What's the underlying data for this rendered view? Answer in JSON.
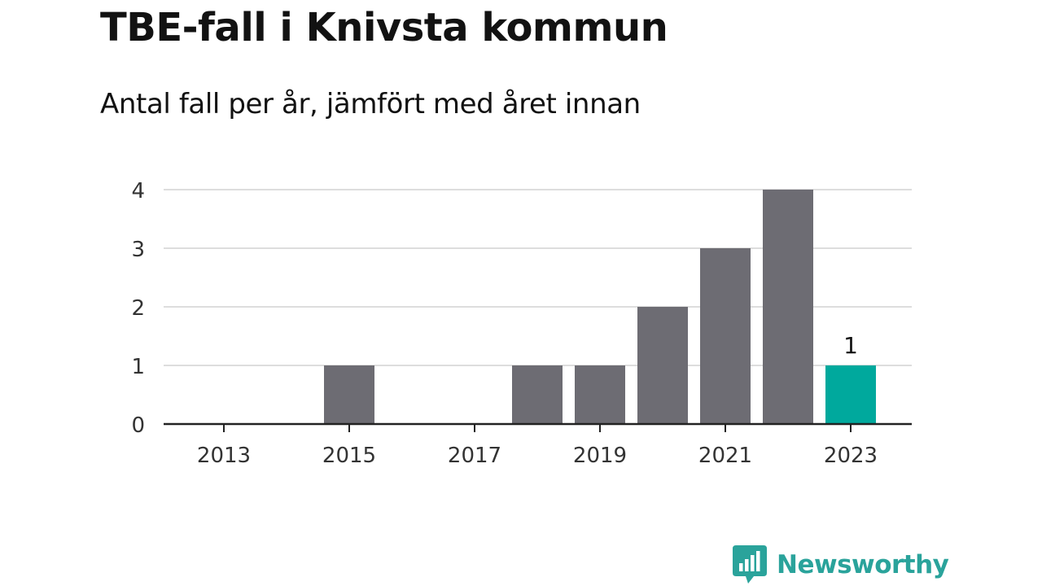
{
  "title": "TBE-fall i Knivsta kommun",
  "subtitle": "Antal fall per år, jämfört med året innan",
  "brand": {
    "name": "Newsworthy",
    "icon": "newsworthy-logo-icon",
    "color": "#2aa39b"
  },
  "colors": {
    "bar": "#6d6c73",
    "highlight": "#00a99d",
    "grid": "#dddddd",
    "axis": "#222222",
    "text": "#121212",
    "tick_text": "#333333"
  },
  "chart_data": {
    "type": "bar",
    "title": "TBE-fall i Knivsta kommun",
    "subtitle": "Antal fall per år, jämfört med året innan",
    "categories": [
      "2013",
      "2014",
      "2015",
      "2016",
      "2017",
      "2018",
      "2019",
      "2020",
      "2021",
      "2022",
      "2023"
    ],
    "values": [
      0,
      0,
      1,
      0,
      0,
      1,
      1,
      2,
      3,
      4,
      1
    ],
    "highlight_category": "2023",
    "data_labels": [
      {
        "category": "2023",
        "label": "1"
      }
    ],
    "x_tick_labels": [
      "2013",
      "2015",
      "2017",
      "2019",
      "2021",
      "2023"
    ],
    "y_ticks": [
      0,
      1,
      2,
      3,
      4
    ],
    "ylim": [
      0,
      4
    ],
    "xlabel": "",
    "ylabel": "",
    "grid": true,
    "legend": "none"
  }
}
